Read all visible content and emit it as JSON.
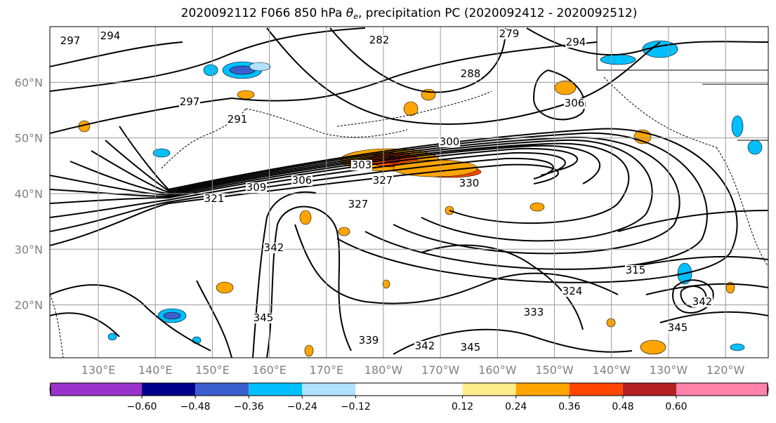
{
  "title": {
    "prefix": "2020092112 F066 850 hPa ",
    "theta": "θ",
    "theta_sub": "e",
    "suffix": ", precipitation PC (2020092412 - 2020092512)"
  },
  "map": {
    "lat_labels": [
      "60°N",
      "50°N",
      "40°N",
      "30°N",
      "20°N"
    ],
    "lat_values": [
      60,
      50,
      40,
      30,
      20
    ],
    "lon_labels": [
      "130°E",
      "140°E",
      "150°E",
      "160°E",
      "170°E",
      "180°W",
      "170°W",
      "160°W",
      "150°W",
      "140°W",
      "130°W",
      "120°W"
    ],
    "lon_values": [
      130,
      140,
      150,
      160,
      170,
      180,
      190,
      200,
      210,
      220,
      230,
      240
    ],
    "extent": {
      "lon_min": 121.5,
      "lon_max": 247.5,
      "lat_min": 10.5,
      "lat_max": 70
    },
    "tick_label_color": "#808080",
    "contour_labels": [
      "297",
      "294",
      "279",
      "282",
      "288",
      "294",
      "306",
      "291",
      "297",
      "300",
      "303",
      "309",
      "306",
      "321",
      "327",
      "330",
      "327",
      "342",
      "345",
      "339",
      "342",
      "345",
      "333",
      "324",
      "315",
      "342",
      "345"
    ]
  },
  "colorbar": {
    "tick_labels": [
      "−0.60",
      "−0.48",
      "−0.36",
      "−0.24",
      "−0.12",
      "0.12",
      "0.24",
      "0.36",
      "0.48",
      "0.60"
    ],
    "tick_values": [
      -0.6,
      -0.48,
      -0.36,
      -0.24,
      -0.12,
      0.12,
      0.24,
      0.36,
      0.48,
      0.6
    ],
    "colors": [
      "#9932CC",
      "#00008B",
      "#3A5FCD",
      "#00BFFF",
      "#B0E2FF",
      "#FFFFFF",
      "#FFEC8B",
      "#FFA500",
      "#FF4500",
      "#B22222",
      "#FF82AB",
      "#FF69B4"
    ]
  }
}
